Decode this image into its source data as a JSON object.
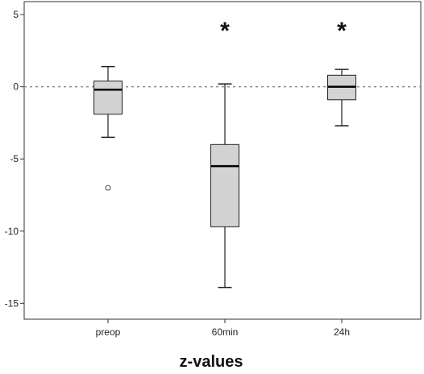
{
  "chart_data": {
    "type": "box",
    "title": "",
    "xlabel": "z-values",
    "ylabel": "",
    "ylim": [
      -16.1,
      5.9
    ],
    "yticks": [
      5,
      0,
      -5,
      -10,
      -15
    ],
    "ytick_labels": [
      "5",
      "0",
      "-5",
      "-10",
      "-15"
    ],
    "reference_line": {
      "y": 0,
      "style": "dotted"
    },
    "grid": false,
    "legend": "none",
    "categories": [
      "preop",
      "60min",
      "24h"
    ],
    "boxes": [
      {
        "category": "preop",
        "whisker_low": -3.5,
        "q1": -1.9,
        "median": -0.2,
        "q3": 0.4,
        "whisker_high": 1.4,
        "outliers": [
          -7.0
        ],
        "annotation": ""
      },
      {
        "category": "60min",
        "whisker_low": -13.9,
        "q1": -9.7,
        "median": -5.5,
        "q3": -4.0,
        "whisker_high": 0.2,
        "outliers": [],
        "annotation": "*"
      },
      {
        "category": "24h",
        "whisker_low": -2.7,
        "q1": -0.9,
        "median": 0.0,
        "q3": 0.8,
        "whisker_high": 1.2,
        "outliers": [],
        "annotation": "*"
      }
    ],
    "colors": {
      "box_fill": "#d3d3d3",
      "stroke": "#222222",
      "reference_line": "#8a8a8a",
      "frame": "#333333"
    }
  }
}
